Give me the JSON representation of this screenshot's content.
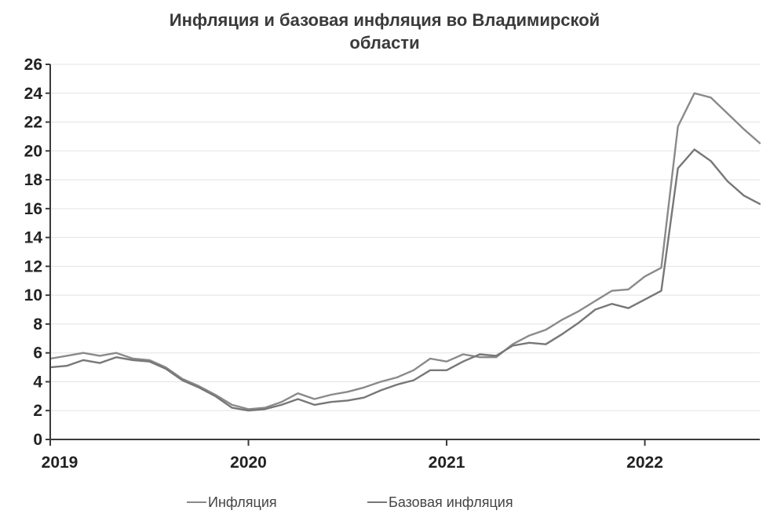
{
  "chart_data": {
    "type": "line",
    "title_lines": [
      "Инфляция и базовая инфляция во Владимирской",
      "области"
    ],
    "xlabel": "",
    "ylabel": "",
    "ylim": [
      0,
      26
    ],
    "yticks": [
      0,
      2,
      4,
      6,
      8,
      10,
      12,
      14,
      16,
      18,
      20,
      22,
      24,
      26
    ],
    "xlim": [
      2019.0,
      2022.58
    ],
    "xticks": [
      {
        "value": 2019,
        "label": "2019"
      },
      {
        "value": 2020,
        "label": "2020"
      },
      {
        "value": 2021,
        "label": "2021"
      },
      {
        "value": 2022,
        "label": "2022"
      }
    ],
    "grid": "horizontal",
    "legend": "bottom",
    "x": [
      2019.0,
      2019.083,
      2019.167,
      2019.25,
      2019.333,
      2019.417,
      2019.5,
      2019.583,
      2019.667,
      2019.75,
      2019.833,
      2019.917,
      2020.0,
      2020.083,
      2020.167,
      2020.25,
      2020.333,
      2020.417,
      2020.5,
      2020.583,
      2020.667,
      2020.75,
      2020.833,
      2020.917,
      2021.0,
      2021.083,
      2021.167,
      2021.25,
      2021.333,
      2021.417,
      2021.5,
      2021.583,
      2021.667,
      2021.75,
      2021.833,
      2021.917,
      2022.0,
      2022.083,
      2022.167,
      2022.25,
      2022.333,
      2022.417,
      2022.5,
      2022.583
    ],
    "series": [
      {
        "name": "Инфляция",
        "color": "#8a8a8a",
        "values": [
          5.6,
          5.8,
          6.0,
          5.8,
          6.0,
          5.6,
          5.5,
          5.0,
          4.2,
          3.7,
          3.1,
          2.4,
          2.1,
          2.2,
          2.6,
          3.2,
          2.8,
          3.1,
          3.3,
          3.6,
          4.0,
          4.3,
          4.8,
          5.6,
          5.4,
          5.9,
          5.7,
          5.7,
          6.6,
          7.2,
          7.6,
          8.3,
          8.9,
          9.6,
          10.3,
          10.4,
          11.3,
          11.9,
          21.7,
          24.0,
          23.7,
          22.6,
          21.5,
          20.5
        ]
      },
      {
        "name": "Базовая инфляция",
        "color": "#777777",
        "values": [
          5.0,
          5.1,
          5.5,
          5.3,
          5.7,
          5.5,
          5.4,
          4.9,
          4.1,
          3.6,
          3.0,
          2.2,
          2.0,
          2.1,
          2.4,
          2.8,
          2.4,
          2.6,
          2.7,
          2.9,
          3.4,
          3.8,
          4.1,
          4.8,
          4.8,
          5.4,
          5.9,
          5.8,
          6.5,
          6.7,
          6.6,
          7.3,
          8.1,
          9.0,
          9.4,
          9.1,
          9.7,
          10.3,
          18.8,
          20.1,
          19.3,
          17.9,
          16.9,
          16.3
        ]
      }
    ]
  }
}
